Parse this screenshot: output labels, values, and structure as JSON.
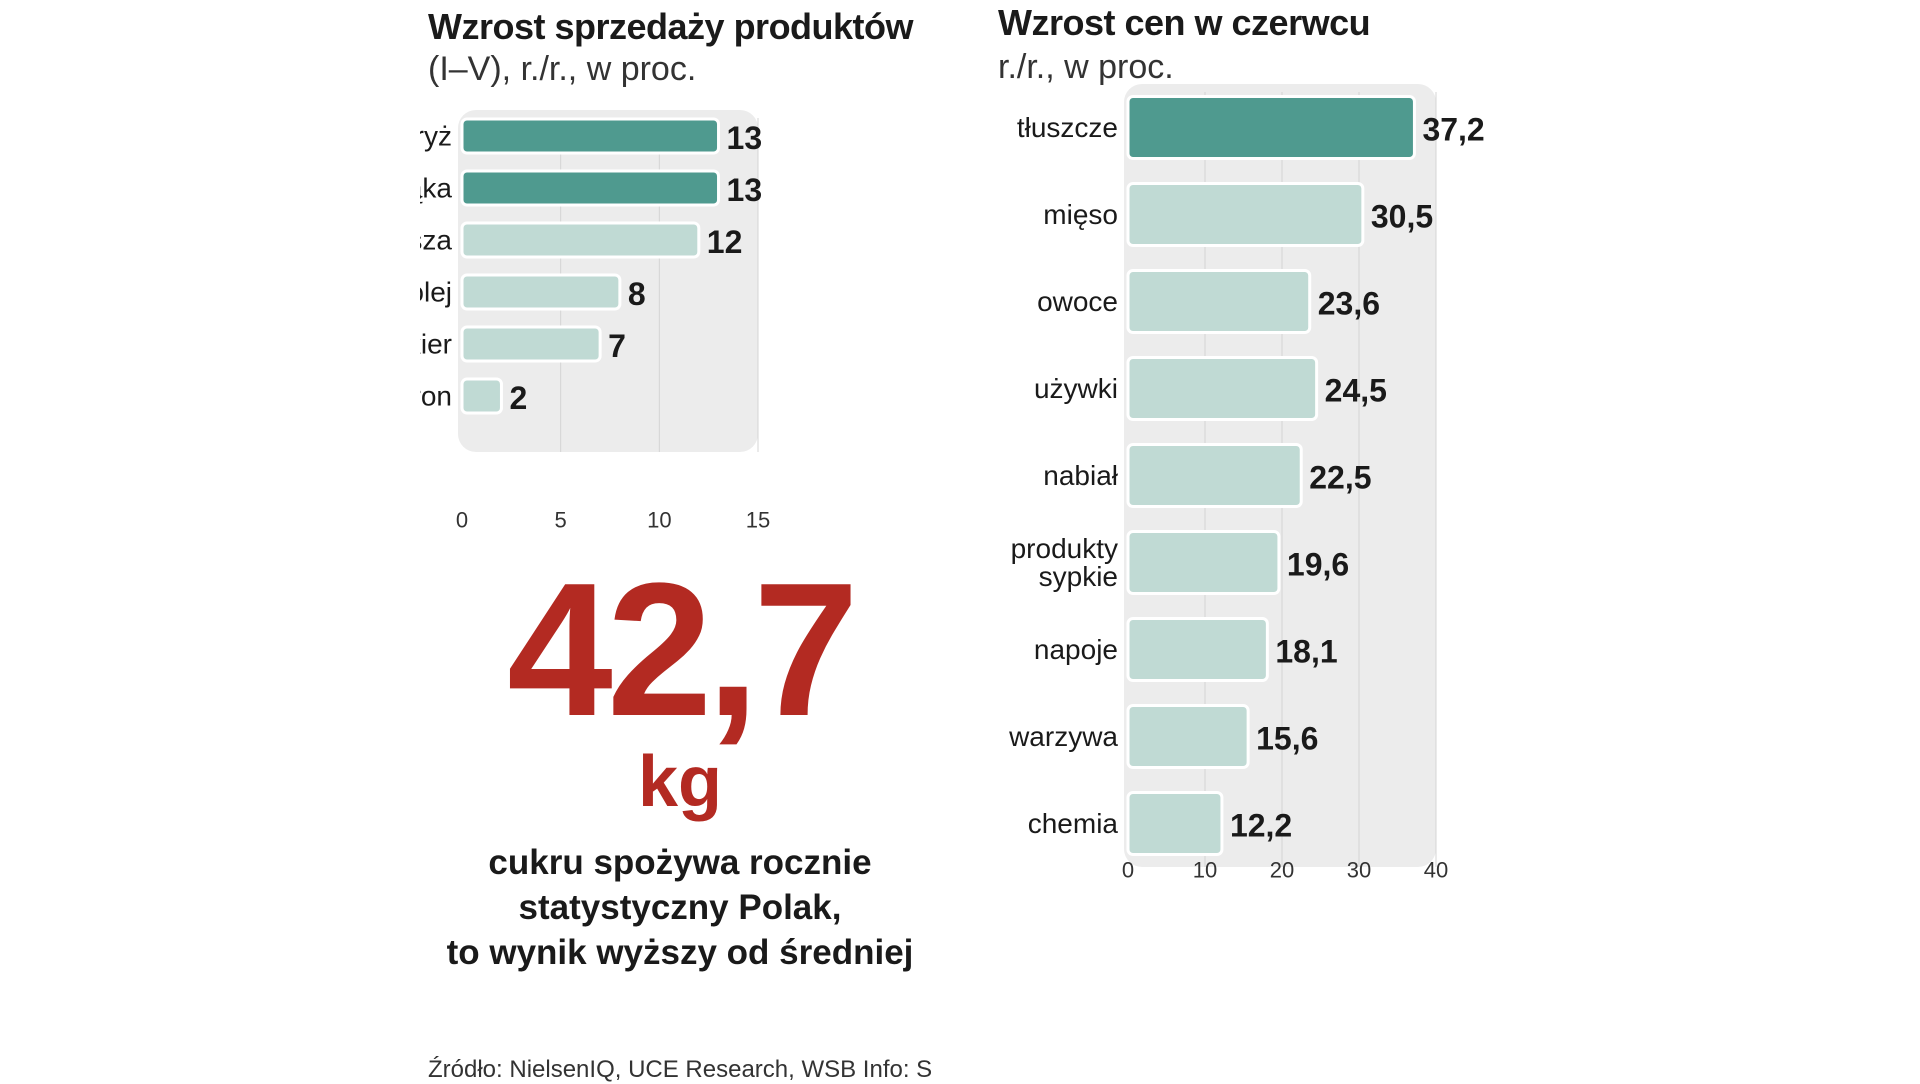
{
  "chart_data": [
    {
      "type": "bar",
      "orientation": "horizontal",
      "title": "Wzrost sprzedaży produktów",
      "subtitle": "(I–V), r./r., w proc.",
      "categories": [
        "ryż",
        "mąka",
        "kasza",
        "olej",
        "cukier",
        "makaron"
      ],
      "values": [
        13,
        13,
        12,
        8,
        7,
        2
      ],
      "value_labels": [
        "13",
        "13",
        "12",
        "8",
        "7",
        "2"
      ],
      "highlight": [
        true,
        true,
        false,
        false,
        false,
        false
      ],
      "xlim": [
        0,
        15
      ],
      "xticks": [
        0,
        5,
        10,
        15
      ],
      "grid": true
    },
    {
      "type": "bar",
      "orientation": "horizontal",
      "title": "Wzrost cen w czerwcu",
      "subtitle": "r./r., w proc.",
      "categories": [
        "tłuszcze",
        "mięso",
        "owoce",
        "używki",
        "nabiał",
        "produkty sypkie",
        "napoje",
        "warzywa",
        "chemia"
      ],
      "values": [
        37.2,
        30.5,
        23.6,
        24.5,
        22.5,
        19.6,
        18.1,
        15.6,
        12.2
      ],
      "value_labels": [
        "37,2",
        "30,5",
        "23,6",
        "24,5",
        "22,5",
        "19,6",
        "18,1",
        "15,6",
        "12,2"
      ],
      "highlight": [
        true,
        false,
        false,
        false,
        false,
        false,
        false,
        false,
        false
      ],
      "xlim": [
        0,
        40
      ],
      "xticks": [
        0,
        10,
        20,
        30,
        40
      ],
      "grid": true
    }
  ],
  "highlight_stat": {
    "value": "42,7",
    "unit": "kg",
    "caption_lines": [
      "cukru spożywa rocznie",
      "statystyczny Polak,",
      "to wynik wyższy od średniej"
    ]
  },
  "source": "Źródło: NielsenIQ, UCE Research, WSB   Info: S",
  "colors": {
    "highlight": "#4f9a8f",
    "normal": "#c0dad4",
    "panel": "#ececec",
    "grid": "#d4d4d4",
    "accent": "#b32a22"
  }
}
